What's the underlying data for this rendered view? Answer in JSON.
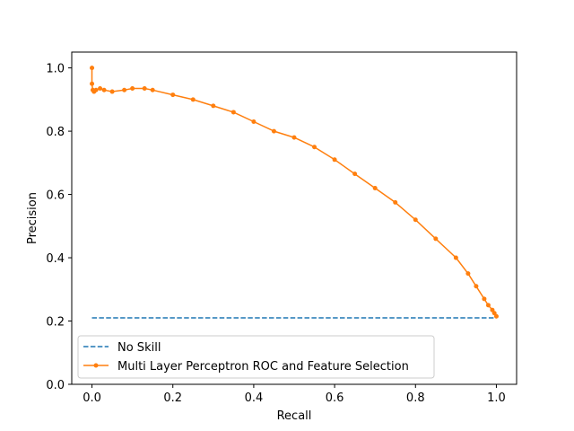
{
  "chart_data": {
    "type": "line",
    "title": "",
    "xlabel": "Recall",
    "ylabel": "Precision",
    "xlim": [
      -0.05,
      1.05
    ],
    "ylim": [
      0.0,
      1.05
    ],
    "xticks": [
      0.0,
      0.2,
      0.4,
      0.6,
      0.8,
      1.0
    ],
    "xtick_labels": [
      "0.0",
      "0.2",
      "0.4",
      "0.6",
      "0.8",
      "1.0"
    ],
    "yticks": [
      0.0,
      0.2,
      0.4,
      0.6,
      0.8,
      1.0
    ],
    "ytick_labels": [
      "0.0",
      "0.2",
      "0.4",
      "0.6",
      "0.8",
      "1.0"
    ],
    "legend_position": "lower-left",
    "series": [
      {
        "name": "No Skill",
        "color": "#1f77b4",
        "style": "dashed",
        "x": [
          0.0,
          1.0
        ],
        "y": [
          0.21,
          0.21
        ]
      },
      {
        "name": "Multi Layer Perceptron ROC and Feature Selection",
        "color": "#ff7f0e",
        "style": "solid-marker",
        "x": [
          0.0,
          0.0,
          0.002,
          0.005,
          0.01,
          0.02,
          0.03,
          0.05,
          0.08,
          0.1,
          0.13,
          0.15,
          0.2,
          0.25,
          0.3,
          0.35,
          0.4,
          0.45,
          0.5,
          0.55,
          0.6,
          0.65,
          0.7,
          0.75,
          0.8,
          0.85,
          0.9,
          0.93,
          0.95,
          0.97,
          0.98,
          0.99,
          0.995,
          1.0
        ],
        "y": [
          1.0,
          0.95,
          0.93,
          0.925,
          0.93,
          0.935,
          0.93,
          0.925,
          0.93,
          0.935,
          0.935,
          0.93,
          0.915,
          0.9,
          0.88,
          0.86,
          0.83,
          0.8,
          0.78,
          0.75,
          0.71,
          0.665,
          0.62,
          0.575,
          0.52,
          0.46,
          0.4,
          0.35,
          0.31,
          0.27,
          0.25,
          0.235,
          0.225,
          0.215
        ]
      }
    ]
  }
}
